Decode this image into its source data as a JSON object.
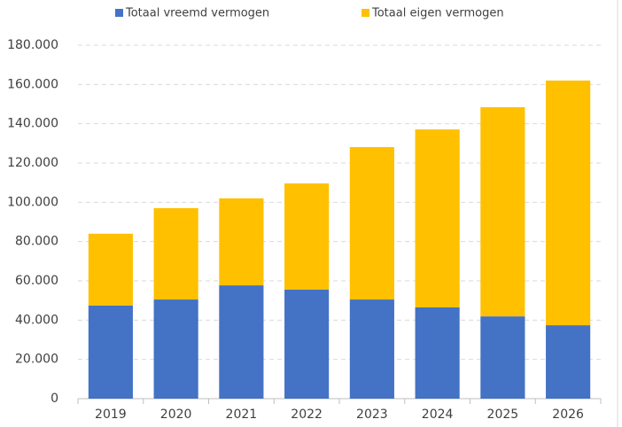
{
  "chart_data": {
    "type": "stacked_bar",
    "categories": [
      "2019",
      "2020",
      "2021",
      "2022",
      "2023",
      "2024",
      "2025",
      "2026"
    ],
    "series": [
      {
        "name": "Totaal vreemd vermogen",
        "color": "#4472c4",
        "values": [
          47400,
          50500,
          57700,
          55500,
          50500,
          46500,
          41900,
          37400
        ]
      },
      {
        "name": "Totaal eigen vermogen",
        "color": "#ffc000",
        "values": [
          36600,
          46500,
          44300,
          54100,
          77600,
          90600,
          106500,
          124600
        ]
      }
    ],
    "ylim": [
      0,
      180000
    ],
    "yticks": [
      0,
      {
        "value": 20000,
        "label": "20.000"
      },
      {
        "value": 40000,
        "label": "40.000"
      },
      {
        "value": 60000,
        "label": "60.000"
      },
      {
        "value": 80000,
        "label": "80.000"
      },
      {
        "value": 100000,
        "label": "100.000"
      },
      {
        "value": 120000,
        "label": "120.000"
      },
      {
        "value": 140000,
        "label": "140.000"
      },
      {
        "value": 160000,
        "label": "160.000"
      },
      {
        "value": 180000,
        "label": "180.000"
      }
    ],
    "grid": true,
    "legend": "top"
  }
}
